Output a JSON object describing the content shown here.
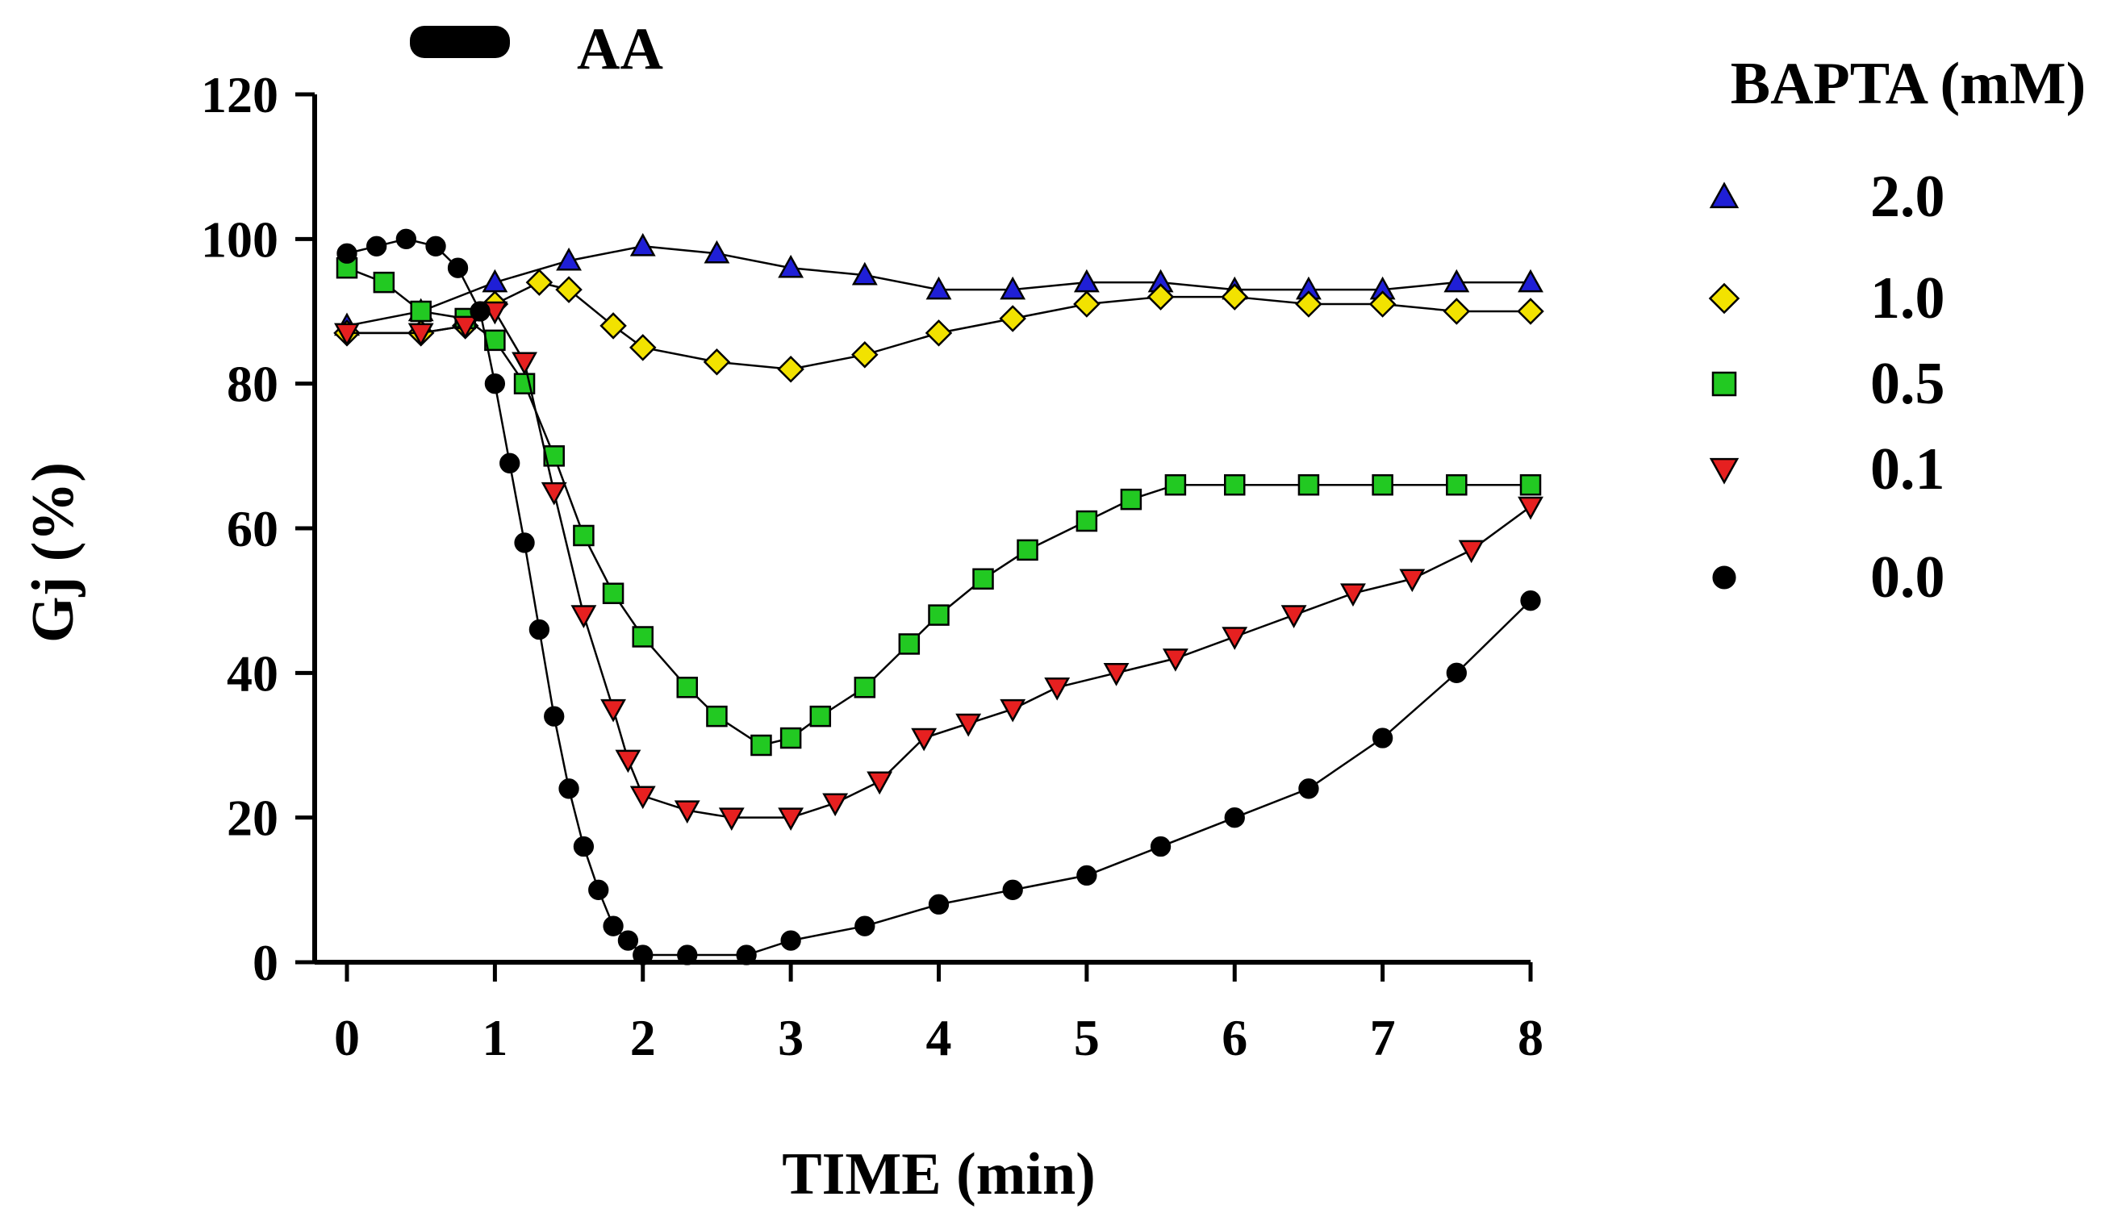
{
  "chart_data": {
    "type": "scatter",
    "xlabel": "TIME (min)",
    "ylabel": "Gj (%)",
    "xlim": [
      0,
      8
    ],
    "ylim": [
      0,
      120
    ],
    "xticks": [
      "0",
      "1",
      "2",
      "3",
      "4",
      "5",
      "6",
      "7",
      "8"
    ],
    "yticks": [
      "0",
      "20",
      "40",
      "60",
      "80",
      "100",
      "120"
    ],
    "grid": false,
    "annotation": {
      "label": "AA",
      "bar_x": [
        0.5,
        1.3
      ],
      "color": "#000000"
    },
    "legend": {
      "title": "BAPTA (mM)",
      "placement": "right",
      "entries": [
        "2.0",
        "1.0",
        "0.5",
        "0.1",
        "0.0"
      ]
    },
    "series": [
      {
        "name": "2.0",
        "marker": "triangle-up",
        "color": "#1f1fd6",
        "points": [
          [
            0,
            88
          ],
          [
            0.5,
            90
          ],
          [
            1,
            94
          ],
          [
            1.5,
            97
          ],
          [
            2,
            99
          ],
          [
            2.5,
            98
          ],
          [
            3,
            96
          ],
          [
            3.5,
            95
          ],
          [
            4,
            93
          ],
          [
            4.5,
            93
          ],
          [
            5,
            94
          ],
          [
            5.5,
            94
          ],
          [
            6,
            93
          ],
          [
            6.5,
            93
          ],
          [
            7,
            93
          ],
          [
            7.5,
            94
          ],
          [
            8,
            94
          ]
        ]
      },
      {
        "name": "1.0",
        "marker": "diamond",
        "color": "#f2e200",
        "points": [
          [
            0,
            87
          ],
          [
            0.5,
            87
          ],
          [
            0.8,
            88
          ],
          [
            1,
            91
          ],
          [
            1.3,
            94
          ],
          [
            1.5,
            93
          ],
          [
            1.8,
            88
          ],
          [
            2,
            85
          ],
          [
            2.5,
            83
          ],
          [
            3,
            82
          ],
          [
            3.5,
            84
          ],
          [
            4,
            87
          ],
          [
            4.5,
            89
          ],
          [
            5,
            91
          ],
          [
            5.5,
            92
          ],
          [
            6,
            92
          ],
          [
            6.5,
            91
          ],
          [
            7,
            91
          ],
          [
            7.5,
            90
          ],
          [
            8,
            90
          ]
        ]
      },
      {
        "name": "0.5",
        "marker": "square",
        "color": "#22c922",
        "points": [
          [
            0,
            96
          ],
          [
            0.25,
            94
          ],
          [
            0.5,
            90
          ],
          [
            0.8,
            89
          ],
          [
            1,
            86
          ],
          [
            1.2,
            80
          ],
          [
            1.4,
            70
          ],
          [
            1.6,
            59
          ],
          [
            1.8,
            51
          ],
          [
            2,
            45
          ],
          [
            2.3,
            38
          ],
          [
            2.5,
            34
          ],
          [
            2.8,
            30
          ],
          [
            3,
            31
          ],
          [
            3.2,
            34
          ],
          [
            3.5,
            38
          ],
          [
            3.8,
            44
          ],
          [
            4,
            48
          ],
          [
            4.3,
            53
          ],
          [
            4.6,
            57
          ],
          [
            5,
            61
          ],
          [
            5.3,
            64
          ],
          [
            5.6,
            66
          ],
          [
            6,
            66
          ],
          [
            6.5,
            66
          ],
          [
            7,
            66
          ],
          [
            7.5,
            66
          ],
          [
            8,
            66
          ]
        ]
      },
      {
        "name": "0.1",
        "marker": "triangle-down",
        "color": "#e62020",
        "points": [
          [
            0,
            87
          ],
          [
            0.5,
            87
          ],
          [
            0.8,
            88
          ],
          [
            1,
            90
          ],
          [
            1.2,
            83
          ],
          [
            1.4,
            65
          ],
          [
            1.6,
            48
          ],
          [
            1.8,
            35
          ],
          [
            1.9,
            28
          ],
          [
            2,
            23
          ],
          [
            2.3,
            21
          ],
          [
            2.6,
            20
          ],
          [
            3,
            20
          ],
          [
            3.3,
            22
          ],
          [
            3.6,
            25
          ],
          [
            3.9,
            31
          ],
          [
            4.2,
            33
          ],
          [
            4.5,
            35
          ],
          [
            4.8,
            38
          ],
          [
            5.2,
            40
          ],
          [
            5.6,
            42
          ],
          [
            6,
            45
          ],
          [
            6.4,
            48
          ],
          [
            6.8,
            51
          ],
          [
            7.2,
            53
          ],
          [
            7.6,
            57
          ],
          [
            8,
            63
          ]
        ]
      },
      {
        "name": "0.0",
        "marker": "circle",
        "color": "#000000",
        "points": [
          [
            0,
            98
          ],
          [
            0.2,
            99
          ],
          [
            0.4,
            100
          ],
          [
            0.6,
            99
          ],
          [
            0.75,
            96
          ],
          [
            0.9,
            90
          ],
          [
            1,
            80
          ],
          [
            1.1,
            69
          ],
          [
            1.2,
            58
          ],
          [
            1.3,
            46
          ],
          [
            1.4,
            34
          ],
          [
            1.5,
            24
          ],
          [
            1.6,
            16
          ],
          [
            1.7,
            10
          ],
          [
            1.8,
            5
          ],
          [
            1.9,
            3
          ],
          [
            2,
            1
          ],
          [
            2.3,
            1
          ],
          [
            2.7,
            1
          ],
          [
            3,
            3
          ],
          [
            3.5,
            5
          ],
          [
            4,
            8
          ],
          [
            4.5,
            10
          ],
          [
            5,
            12
          ],
          [
            5.5,
            16
          ],
          [
            6,
            20
          ],
          [
            6.5,
            24
          ],
          [
            7,
            31
          ],
          [
            7.5,
            40
          ],
          [
            8,
            50
          ]
        ]
      }
    ]
  }
}
